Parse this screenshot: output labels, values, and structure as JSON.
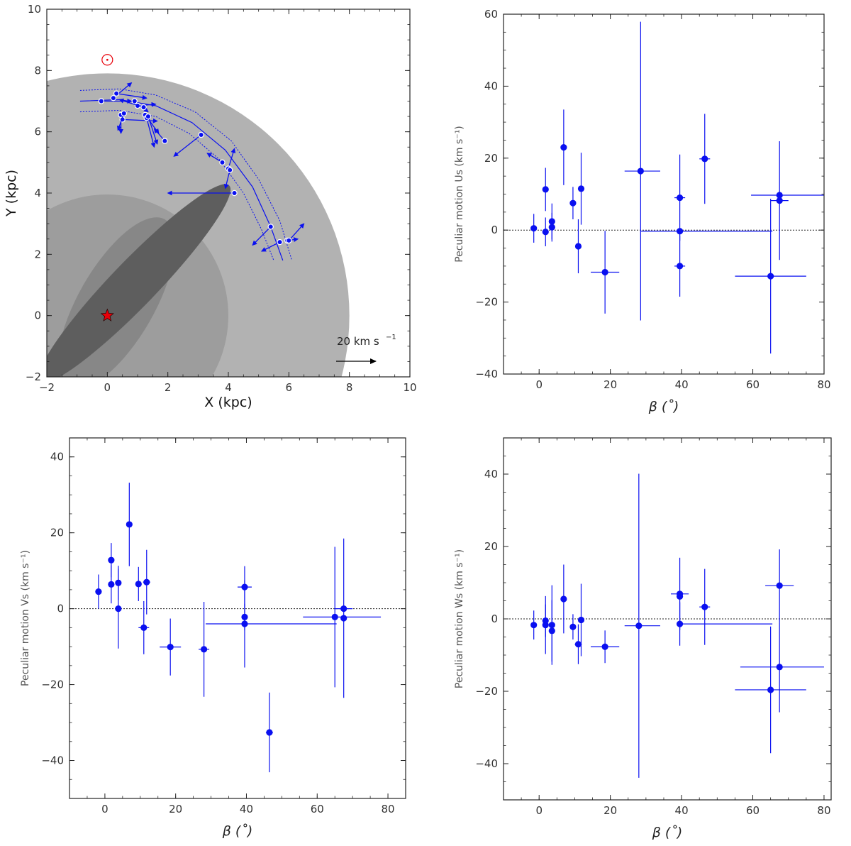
{
  "colors": {
    "marker": "#0a10f0",
    "outer_disk": "#b2b2b2",
    "inner_disk": "#9d9d9d",
    "bar_light": "#878787",
    "bar_dark": "#5e5e5e",
    "sun": "#e8000a",
    "center_star": "#e8000a"
  },
  "chart_data": [
    {
      "id": "map",
      "type": "scatter",
      "xlabel": "X (kpc)",
      "ylabel": "Y (kpc)",
      "xlim": [
        -2,
        10
      ],
      "ylim": [
        -2,
        10
      ],
      "xticks": [
        -2,
        0,
        2,
        4,
        6,
        8,
        10
      ],
      "yticks": [
        -2,
        0,
        2,
        4,
        6,
        8,
        10
      ],
      "scale_bar": {
        "label": "20 km s",
        "superscript": "−1",
        "vector_kms": 20
      },
      "sun": {
        "x": 0,
        "y": 8.35
      },
      "galactic_center": {
        "x": 0,
        "y": 0
      },
      "regions": [
        {
          "name": "outer disk",
          "shape": "disk",
          "radius_kpc": 8.0
        },
        {
          "name": "inner disk",
          "shape": "disk",
          "radius_kpc": 4.0
        },
        {
          "name": "long bar",
          "shape": "ellipse",
          "center": [
            0.9,
            1.05
          ],
          "semi_axes": [
            4.5,
            0.75
          ],
          "angle_deg": 46
        },
        {
          "name": "bulge bar",
          "shape": "ellipse",
          "center": [
            0.3,
            0.4
          ],
          "semi_axes": [
            3.2,
            1.25
          ],
          "angle_deg": 60
        }
      ],
      "arm_curve": [
        [
          -0.9,
          7.0
        ],
        [
          0.4,
          7.05
        ],
        [
          1.6,
          6.85
        ],
        [
          2.8,
          6.3
        ],
        [
          3.9,
          5.4
        ],
        [
          4.8,
          4.2
        ],
        [
          5.4,
          2.9
        ],
        [
          5.8,
          1.8
        ]
      ],
      "arm_inner_curve": [
        [
          -0.9,
          6.65
        ],
        [
          0.4,
          6.7
        ],
        [
          1.6,
          6.5
        ],
        [
          2.7,
          5.95
        ],
        [
          3.7,
          5.1
        ],
        [
          4.5,
          4.0
        ],
        [
          5.1,
          2.8
        ],
        [
          5.5,
          1.8
        ]
      ],
      "arm_outer_curve": [
        [
          -0.9,
          7.35
        ],
        [
          0.4,
          7.4
        ],
        [
          1.6,
          7.2
        ],
        [
          2.9,
          6.65
        ],
        [
          4.1,
          5.7
        ],
        [
          5.0,
          4.45
        ],
        [
          5.7,
          3.1
        ],
        [
          6.1,
          1.8
        ]
      ],
      "sources": [
        {
          "x": -0.2,
          "y": 7.0,
          "vx": 1.0,
          "vy": 0.0
        },
        {
          "x": 0.2,
          "y": 7.1,
          "vx": 0.6,
          "vy": 0.5
        },
        {
          "x": 0.3,
          "y": 7.25,
          "vx": 1.0,
          "vy": -0.15
        },
        {
          "x": 0.45,
          "y": 6.55,
          "vx": 0.0,
          "vy": -0.6
        },
        {
          "x": 0.5,
          "y": 6.4,
          "vx": 1.15,
          "vy": -0.05
        },
        {
          "x": 0.55,
          "y": 6.6,
          "vx": -0.2,
          "vy": -0.55
        },
        {
          "x": 0.9,
          "y": 7.0,
          "vx": 0.45,
          "vy": -0.35
        },
        {
          "x": 1.0,
          "y": 6.85,
          "vx": 0.6,
          "vy": 0.05
        },
        {
          "x": 1.2,
          "y": 6.8,
          "vx": -0.8,
          "vy": 0.25
        },
        {
          "x": 1.25,
          "y": 6.55,
          "vx": 0.45,
          "vy": -0.6
        },
        {
          "x": 1.3,
          "y": 6.45,
          "vx": 0.25,
          "vy": -0.95
        },
        {
          "x": 1.35,
          "y": 6.5,
          "vx": 0.3,
          "vy": -0.9
        },
        {
          "x": 1.9,
          "y": 5.7,
          "vx": -0.35,
          "vy": 0.4
        },
        {
          "x": 3.1,
          "y": 5.9,
          "vx": -0.9,
          "vy": -0.7
        },
        {
          "x": 3.8,
          "y": 5.0,
          "vx": -0.5,
          "vy": 0.3
        },
        {
          "x": 4.0,
          "y": 4.8,
          "vx": 0.2,
          "vy": 0.65
        },
        {
          "x": 4.05,
          "y": 4.75,
          "vx": -0.15,
          "vy": -0.6
        },
        {
          "x": 4.2,
          "y": 4.0,
          "vx": -2.2,
          "vy": 0.0
        },
        {
          "x": 5.4,
          "y": 2.9,
          "vx": -0.6,
          "vy": -0.6
        },
        {
          "x": 5.7,
          "y": 2.4,
          "vx": -0.6,
          "vy": -0.3
        },
        {
          "x": 5.95,
          "y": 2.45,
          "vx": 0.35,
          "vy": 0.05
        },
        {
          "x": 6.0,
          "y": 2.45,
          "vx": 0.5,
          "vy": 0.55
        }
      ]
    },
    {
      "id": "us",
      "type": "scatter",
      "xlabel": "β (˚)",
      "ylabel": "Peculiar motion Us (km s⁻¹)",
      "xlim": [
        -10,
        80
      ],
      "ylim": [
        -40,
        60
      ],
      "xticks": [
        0,
        20,
        40,
        60,
        80
      ],
      "yticks": [
        -40,
        -20,
        0,
        20,
        40,
        60
      ],
      "points": [
        {
          "x": -1.5,
          "y": 0.5,
          "xerr": [
            0,
            0
          ],
          "yerr": [
            4,
            4
          ]
        },
        {
          "x": 1.8,
          "y": 11.3,
          "xerr": [
            0,
            0
          ],
          "yerr": [
            6,
            6
          ]
        },
        {
          "x": 1.8,
          "y": -0.5,
          "xerr": [
            0,
            0
          ],
          "yerr": [
            4,
            4
          ]
        },
        {
          "x": 3.6,
          "y": 2.4,
          "xerr": [
            0,
            0
          ],
          "yerr": [
            5,
            5
          ]
        },
        {
          "x": 3.6,
          "y": 0.8,
          "xerr": [
            0,
            0
          ],
          "yerr": [
            4,
            4
          ]
        },
        {
          "x": 6.9,
          "y": 23.0,
          "xerr": [
            0,
            0
          ],
          "yerr": [
            10.5,
            10.5
          ]
        },
        {
          "x": 9.5,
          "y": 7.5,
          "xerr": [
            0,
            0
          ],
          "yerr": [
            4.5,
            4.5
          ]
        },
        {
          "x": 11.0,
          "y": -4.5,
          "xerr": [
            0,
            0
          ],
          "yerr": [
            7.5,
            7.5
          ]
        },
        {
          "x": 11.8,
          "y": 11.5,
          "xerr": [
            0.8,
            0.8
          ],
          "yerr": [
            10,
            10
          ]
        },
        {
          "x": 18.5,
          "y": -11.7,
          "xerr": [
            4,
            4
          ],
          "yerr": [
            11.5,
            11.5
          ]
        },
        {
          "x": 28.5,
          "y": 16.4,
          "xerr": [
            4.5,
            5.5
          ],
          "yerr": [
            41.5,
            41.5
          ]
        },
        {
          "x": 39.5,
          "y": 9.0,
          "xerr": [
            1.5,
            1.5
          ],
          "yerr": [
            12,
            12
          ]
        },
        {
          "x": 39.5,
          "y": -0.3,
          "xerr": [
            11,
            26
          ],
          "yerr": [
            0,
            0
          ]
        },
        {
          "x": 39.5,
          "y": -10.0,
          "xerr": [
            1.5,
            1.5
          ],
          "yerr": [
            8.5,
            8.5
          ]
        },
        {
          "x": 46.5,
          "y": 19.8,
          "xerr": [
            1.5,
            1.5
          ],
          "yerr": [
            12.5,
            12.5
          ]
        },
        {
          "x": 65.0,
          "y": -12.8,
          "xerr": [
            10,
            10
          ],
          "yerr": [
            21.5,
            21.5
          ]
        },
        {
          "x": 67.5,
          "y": 9.7,
          "xerr": [
            8,
            13
          ],
          "yerr": [
            0,
            0
          ]
        },
        {
          "x": 67.5,
          "y": 8.2,
          "xerr": [
            2.5,
            2.5
          ],
          "yerr": [
            16.5,
            16.5
          ]
        }
      ]
    },
    {
      "id": "vs",
      "type": "scatter",
      "xlabel": "β (˚)",
      "ylabel": "Peculiar motion Vs (km s⁻¹)",
      "xlim": [
        -10,
        85
      ],
      "ylim": [
        -50,
        45
      ],
      "xticks": [
        0,
        20,
        40,
        60,
        80
      ],
      "yticks": [
        -40,
        -20,
        0,
        20,
        40
      ],
      "points": [
        {
          "x": -1.8,
          "y": 4.5,
          "xerr": [
            0,
            0
          ],
          "yerr": [
            4.5,
            4.5
          ]
        },
        {
          "x": 1.8,
          "y": 12.8,
          "xerr": [
            0,
            0
          ],
          "yerr": [
            4.5,
            4.5
          ]
        },
        {
          "x": 1.8,
          "y": 6.4,
          "xerr": [
            0,
            0
          ],
          "yerr": [
            5,
            5
          ]
        },
        {
          "x": 3.8,
          "y": 6.8,
          "xerr": [
            0,
            0
          ],
          "yerr": [
            4.5,
            4.5
          ]
        },
        {
          "x": 3.8,
          "y": 0.0,
          "xerr": [
            0,
            0
          ],
          "yerr": [
            10.5,
            10.5
          ]
        },
        {
          "x": 6.9,
          "y": 22.2,
          "xerr": [
            0,
            0
          ],
          "yerr": [
            11,
            11
          ]
        },
        {
          "x": 9.5,
          "y": 6.5,
          "xerr": [
            0,
            0
          ],
          "yerr": [
            4.5,
            4.5
          ]
        },
        {
          "x": 11.0,
          "y": -5.0,
          "xerr": [
            1.5,
            1.5
          ],
          "yerr": [
            7,
            7
          ]
        },
        {
          "x": 11.8,
          "y": 7.0,
          "xerr": [
            1,
            1
          ],
          "yerr": [
            8.5,
            8.5
          ]
        },
        {
          "x": 18.5,
          "y": -10.1,
          "xerr": [
            3,
            3
          ],
          "yerr": [
            7.5,
            7.5
          ]
        },
        {
          "x": 28.0,
          "y": -10.7,
          "xerr": [
            1.5,
            1.5
          ],
          "yerr": [
            12.5,
            12.5
          ]
        },
        {
          "x": 39.5,
          "y": 5.7,
          "xerr": [
            2,
            2
          ],
          "yerr": [
            5.5,
            5.5
          ]
        },
        {
          "x": 39.5,
          "y": -2.2,
          "xerr": [
            0,
            0
          ],
          "yerr": [
            3.5,
            3.5
          ]
        },
        {
          "x": 39.5,
          "y": -4.0,
          "xerr": [
            11,
            26
          ],
          "yerr": [
            11.5,
            11.5
          ]
        },
        {
          "x": 46.5,
          "y": -32.6,
          "xerr": [
            1,
            1
          ],
          "yerr": [
            10.5,
            10.5
          ]
        },
        {
          "x": 65.0,
          "y": -2.2,
          "xerr": [
            9,
            13
          ],
          "yerr": [
            18.5,
            18.5
          ]
        },
        {
          "x": 67.5,
          "y": 0.0,
          "xerr": [
            2.5,
            2.5
          ],
          "yerr": [
            0,
            0
          ]
        },
        {
          "x": 67.5,
          "y": -2.5,
          "xerr": [
            0,
            0
          ],
          "yerr": [
            21,
            21
          ]
        }
      ]
    },
    {
      "id": "ws",
      "type": "scatter",
      "xlabel": "β (˚)",
      "ylabel": "Peculiar motion Ws (km s⁻¹)",
      "xlim": [
        -10,
        82
      ],
      "ylim": [
        -50,
        50
      ],
      "xticks": [
        0,
        20,
        40,
        60,
        80
      ],
      "yticks": [
        -40,
        -20,
        0,
        20,
        40
      ],
      "points": [
        {
          "x": -1.5,
          "y": -1.7,
          "xerr": [
            0,
            0
          ],
          "yerr": [
            4,
            4
          ]
        },
        {
          "x": 1.8,
          "y": -0.5,
          "xerr": [
            0,
            0
          ],
          "yerr": [
            4.5,
            4.5
          ]
        },
        {
          "x": 1.8,
          "y": -1.7,
          "xerr": [
            0,
            0
          ],
          "yerr": [
            8,
            8
          ]
        },
        {
          "x": 3.6,
          "y": -1.7,
          "xerr": [
            0,
            0
          ],
          "yerr": [
            11,
            11
          ]
        },
        {
          "x": 3.6,
          "y": -3.3,
          "xerr": [
            0,
            0
          ],
          "yerr": [
            8.5,
            8.5
          ]
        },
        {
          "x": 6.9,
          "y": 5.5,
          "xerr": [
            0,
            0
          ],
          "yerr": [
            9.5,
            9.5
          ]
        },
        {
          "x": 9.5,
          "y": -2.2,
          "xerr": [
            0,
            0
          ],
          "yerr": [
            3.5,
            3.5
          ]
        },
        {
          "x": 11.0,
          "y": -7.0,
          "xerr": [
            1,
            1
          ],
          "yerr": [
            5.5,
            5.5
          ]
        },
        {
          "x": 11.8,
          "y": -0.3,
          "xerr": [
            0,
            0
          ],
          "yerr": [
            10,
            10
          ]
        },
        {
          "x": 18.5,
          "y": -7.7,
          "xerr": [
            4,
            4
          ],
          "yerr": [
            4.5,
            4.5
          ]
        },
        {
          "x": 28.0,
          "y": -1.9,
          "xerr": [
            4,
            6
          ],
          "yerr": [
            42,
            42
          ]
        },
        {
          "x": 39.5,
          "y": 6.9,
          "xerr": [
            2.5,
            2.5
          ],
          "yerr": [
            10,
            10
          ]
        },
        {
          "x": 39.5,
          "y": 6.2,
          "xerr": [
            0,
            0
          ],
          "yerr": [
            0,
            0
          ]
        },
        {
          "x": 39.5,
          "y": -1.4,
          "xerr": [
            0,
            26
          ],
          "yerr": [
            6,
            6
          ]
        },
        {
          "x": 46.5,
          "y": 3.3,
          "xerr": [
            1.5,
            1.5
          ],
          "yerr": [
            10.5,
            10.5
          ]
        },
        {
          "x": 65.0,
          "y": -19.6,
          "xerr": [
            10,
            10
          ],
          "yerr": [
            17.5,
            17.5
          ]
        },
        {
          "x": 67.5,
          "y": 9.2,
          "xerr": [
            4,
            4
          ],
          "yerr": [
            10,
            10
          ]
        },
        {
          "x": 67.5,
          "y": -13.3,
          "xerr": [
            11,
            12.5
          ],
          "yerr": [
            12.5,
            12.5
          ]
        }
      ]
    }
  ]
}
